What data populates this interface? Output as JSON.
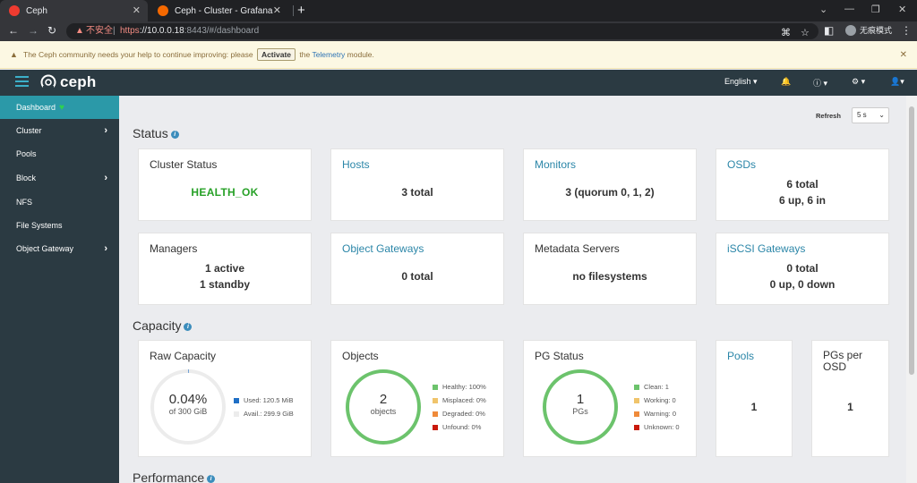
{
  "browser": {
    "tabs": [
      {
        "title": "Ceph",
        "active": true
      },
      {
        "title": "Ceph - Cluster - Grafana",
        "active": false
      }
    ],
    "insecure_label": "不安全",
    "url_proto": "https",
    "url_host": "://10.0.0.18",
    "url_rest": ":8443/#/dashboard",
    "profile_label": "无痕模式"
  },
  "banner": {
    "text_before": "The Ceph community needs your help to continue improving: please",
    "activate_label": "Activate",
    "text_middle": "the",
    "telemetry_link": "Telemetry",
    "text_after": "module."
  },
  "navbar": {
    "logo": "ceph",
    "language": "English",
    "colors": {
      "bar": "#2b3a42",
      "accent": "#3cb0c9"
    }
  },
  "sidebar": {
    "items": [
      {
        "label": "Dashboard",
        "active": true,
        "has_children": false
      },
      {
        "label": "Cluster",
        "active": false,
        "has_children": true
      },
      {
        "label": "Pools",
        "active": false,
        "has_children": false
      },
      {
        "label": "Block",
        "active": false,
        "has_children": true
      },
      {
        "label": "NFS",
        "active": false,
        "has_children": false
      },
      {
        "label": "File Systems",
        "active": false,
        "has_children": false
      },
      {
        "label": "Object Gateway",
        "active": false,
        "has_children": true
      }
    ]
  },
  "refresh": {
    "label": "Refresh",
    "value": "5 s"
  },
  "sections": {
    "status": "Status",
    "capacity": "Capacity",
    "performance": "Performance"
  },
  "status_cards": {
    "cluster_status": {
      "title": "Cluster Status",
      "value": "HEALTH_OK"
    },
    "hosts": {
      "title": "Hosts",
      "value": "3 total"
    },
    "monitors": {
      "title": "Monitors",
      "value": "3 (quorum 0, 1, 2)"
    },
    "osds": {
      "title": "OSDs",
      "line1": "6 total",
      "line2": "6 up, 6 in"
    },
    "managers": {
      "title": "Managers",
      "line1": "1 active",
      "line2": "1 standby"
    },
    "object_gateways": {
      "title": "Object Gateways",
      "value": "0 total"
    },
    "metadata_servers": {
      "title": "Metadata Servers",
      "value": "no filesystems"
    },
    "iscsi_gateways": {
      "title": "iSCSI Gateways",
      "line1": "0 total",
      "line2": "0 up, 0 down"
    }
  },
  "capacity_cards": {
    "raw_capacity": {
      "title": "Raw Capacity",
      "percent": "0.04%",
      "of_total": "of 300 GiB",
      "used_fraction": 0.0004,
      "legend": [
        {
          "label": "Used: 120.5 MiB",
          "color": "#1f6fc5"
        },
        {
          "label": "Avail.: 299.9 GiB",
          "color": "#ececec"
        }
      ]
    },
    "objects": {
      "title": "Objects",
      "count": "2",
      "unit": "objects",
      "legend": [
        {
          "label": "Healthy: 100%",
          "color": "#6cc36c"
        },
        {
          "label": "Misplaced: 0%",
          "color": "#f0c46b"
        },
        {
          "label": "Degraded: 0%",
          "color": "#ef8a3a"
        },
        {
          "label": "Unfound: 0%",
          "color": "#c9190b"
        }
      ]
    },
    "pg_status": {
      "title": "PG Status",
      "count": "1",
      "unit": "PGs",
      "legend": [
        {
          "label": "Clean: 1",
          "color": "#6cc36c"
        },
        {
          "label": "Working: 0",
          "color": "#f0c46b"
        },
        {
          "label": "Warning: 0",
          "color": "#ef8a3a"
        },
        {
          "label": "Unknown: 0",
          "color": "#c9190b"
        }
      ]
    },
    "pools": {
      "title": "Pools",
      "value": "1"
    },
    "pgs_per_osd": {
      "title_line1": "PGs per",
      "title_line2": "OSD",
      "value": "1"
    }
  }
}
